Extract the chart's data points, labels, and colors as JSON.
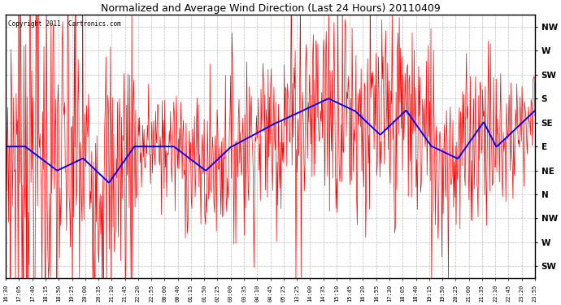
{
  "title": "Normalized and Average Wind Direction (Last 24 Hours) 20110409",
  "copyright": "Copyright 2011  Cartronics.com",
  "background_color": "#ffffff",
  "plot_background": "#ffffff",
  "grid_color": "#aaaaaa",
  "red_color": "#ff0000",
  "blue_color": "#0000ff",
  "y_tick_labels_top_to_bottom": [
    "NW",
    "W",
    "SW",
    "S",
    "SE",
    "E",
    "NE",
    "N",
    "NW",
    "W",
    "SW"
  ],
  "y_tick_values": [
    10,
    9,
    8,
    7,
    6,
    5,
    4,
    3,
    2,
    1,
    0
  ],
  "ylim": [
    -0.5,
    10.5
  ],
  "x_tick_labels": [
    "16:30",
    "17:05",
    "17:40",
    "18:15",
    "18:50",
    "19:25",
    "20:00",
    "20:35",
    "21:10",
    "21:45",
    "22:20",
    "22:55",
    "00:00",
    "00:40",
    "01:15",
    "01:50",
    "02:25",
    "03:00",
    "03:35",
    "04:10",
    "04:45",
    "05:25",
    "13:25",
    "14:00",
    "14:35",
    "15:10",
    "15:45",
    "16:20",
    "16:55",
    "17:30",
    "18:05",
    "18:40",
    "19:15",
    "19:50",
    "20:25",
    "21:00",
    "21:35",
    "22:10",
    "22:45",
    "23:20",
    "23:55"
  ]
}
